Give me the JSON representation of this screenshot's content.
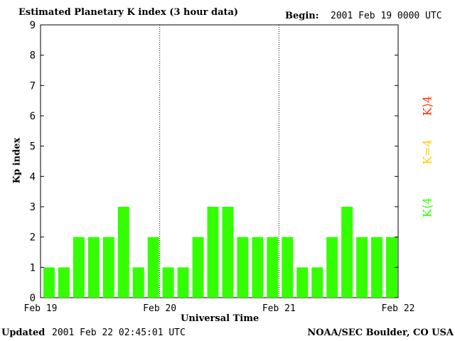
{
  "header": {
    "title": "Estimated Planetary K index (3 hour data)",
    "begin_label": "Begin:",
    "begin_value": "2001 Feb 19 0000 UTC"
  },
  "footer": {
    "updated_label": "Updated",
    "updated_value": "2001 Feb 22 02:45:01 UTC",
    "credit": "NOAA/SEC Boulder, CO USA"
  },
  "legend": {
    "low": {
      "label": "K⟨4",
      "color": "#33ff00"
    },
    "mid": {
      "label": "K=4",
      "color": "#ffcc00"
    },
    "high": {
      "label": "K⟩4",
      "color": "#ff3300"
    }
  },
  "chart_data": {
    "type": "bar",
    "title": "Estimated Planetary K index (3 hour data)",
    "xlabel": "Universal Time",
    "ylabel": "Kp index",
    "ylim": [
      0,
      9
    ],
    "yticks": [
      "0",
      "1",
      "2",
      "3",
      "4",
      "5",
      "6",
      "7",
      "8",
      "9"
    ],
    "xticks": [
      "Feb 19",
      "Feb 20",
      "Feb 21",
      "Feb 22"
    ],
    "bar_color": "#33ff00",
    "values": [
      1,
      1,
      2,
      2,
      2,
      3,
      1,
      2,
      1,
      1,
      2,
      3,
      3,
      2,
      2,
      2,
      2,
      1,
      1,
      2,
      3,
      2,
      2,
      2
    ]
  }
}
